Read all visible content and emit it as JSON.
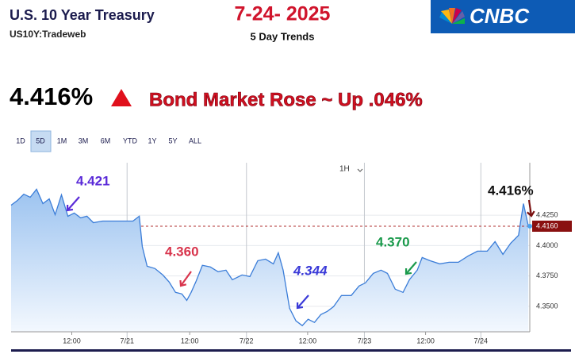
{
  "header": {
    "title": "U.S. 10 Year Treasury",
    "symbol": "US10Y:Tradeweb",
    "date": "7-24- 2025",
    "subtitle": "5 Day Trends",
    "logo": "CNBC",
    "price": "4.416%",
    "headline": "Bond Market Rose ~ Up .046%"
  },
  "range_buttons": [
    "1D",
    "5D",
    "1M",
    "3M",
    "6M",
    "YTD",
    "1Y",
    "5Y",
    "ALL"
  ],
  "selected_range": "5D",
  "interval": "1H",
  "chart_data": {
    "type": "area",
    "x": [
      0,
      1.3,
      2.6,
      3.9,
      5.2,
      6.5,
      7.8,
      9,
      10.3,
      11.6,
      12.9,
      14.2,
      15.5,
      16.8,
      18.7,
      22,
      24.9,
      26.2,
      26.8,
      27.8,
      29.4,
      31,
      32.3,
      33.6,
      34.9,
      35.9,
      36.8,
      37.8,
      39.1,
      40.7,
      42.3,
      43.9,
      45.2,
      47.2,
      48.8,
      50.4,
      52,
      53.6,
      54.6,
      55.6,
      56.9,
      58.2,
      59.5,
      60.7,
      62,
      63.3,
      64.6,
      65.9,
      67.5,
      69.5,
      71.1,
      72.4,
      74,
      75.6,
      76.9,
      78.5,
      80.1,
      81.4,
      83,
      84,
      85.6,
      87.6,
      89.5,
      91.4,
      93.4,
      95.3,
      97.3,
      98.9,
      100.5,
      102.1,
      103.7,
      104.7,
      105.7
    ],
    "values": [
      4.4333,
      4.4372,
      4.4424,
      4.4398,
      4.4464,
      4.4346,
      4.4385,
      4.4255,
      4.4418,
      4.4242,
      4.4268,
      4.4229,
      4.4242,
      4.4189,
      4.4202,
      4.4202,
      4.4202,
      4.4242,
      4.3993,
      4.383,
      4.3811,
      4.3758,
      4.37,
      4.3615,
      4.3602,
      4.3549,
      4.3615,
      4.3706,
      4.3837,
      4.3824,
      4.3785,
      4.3798,
      4.3719,
      4.3758,
      4.3745,
      4.3876,
      4.3889,
      4.385,
      4.3941,
      4.3798,
      4.3484,
      4.338,
      4.3341,
      4.3393,
      4.3367,
      4.3432,
      4.3458,
      4.3497,
      4.3589,
      4.3589,
      4.3667,
      4.3693,
      4.3771,
      4.3798,
      4.3771,
      4.3641,
      4.3615,
      4.3719,
      4.3798,
      4.3902,
      4.3876,
      4.385,
      4.3863,
      4.3863,
      4.3915,
      4.3954,
      4.3954,
      4.4033,
      4.3928,
      4.402,
      4.4085,
      4.4346,
      4.4163
    ],
    "color": "#3b7dd8",
    "xlim": [
      0,
      106
    ],
    "ylim": [
      4.329,
      4.465
    ],
    "yticks": [
      {
        "value": 4.35,
        "label": "4.3500"
      },
      {
        "value": 4.375,
        "label": "4.3750"
      },
      {
        "value": 4.4,
        "label": "4.4000"
      },
      {
        "value": 4.425,
        "label": "4.4250"
      }
    ],
    "xticks": [
      {
        "value": 12.4,
        "label": "12:00"
      },
      {
        "value": 23.7,
        "label": "7/21"
      },
      {
        "value": 36.5,
        "label": "12:00"
      },
      {
        "value": 48.1,
        "label": "7/22"
      },
      {
        "value": 60.6,
        "label": "12:00"
      },
      {
        "value": 72.2,
        "label": "7/23"
      },
      {
        "value": 84.7,
        "label": "12:00"
      },
      {
        "value": 96,
        "label": "7/24"
      }
    ],
    "last": {
      "value": 4.416,
      "label": "4.4160"
    },
    "annotations": [
      {
        "text": "4.421",
        "color": "#5a2ad8"
      },
      {
        "text": "4.360",
        "color": "#d8344c"
      },
      {
        "text": "4.344",
        "color": "#3a3ad8"
      },
      {
        "text": "4.370",
        "color": "#1b9a4c"
      },
      {
        "text": "4.416%",
        "color": "#111111"
      }
    ]
  }
}
